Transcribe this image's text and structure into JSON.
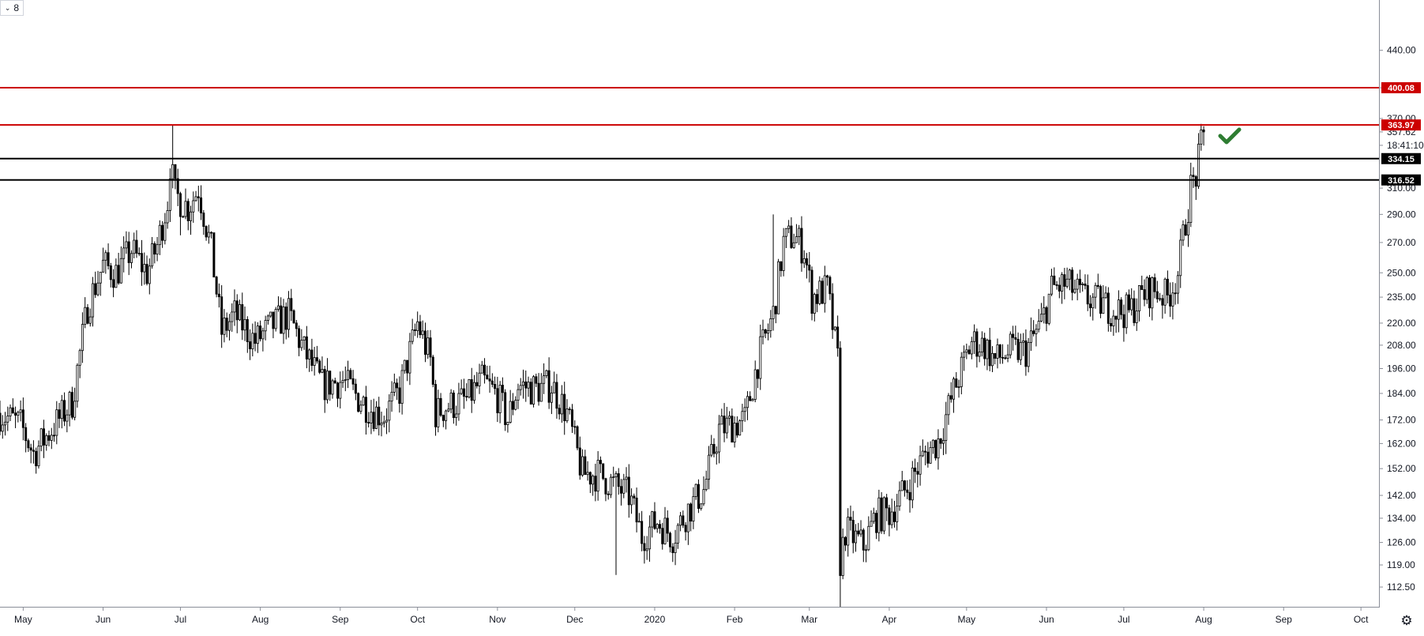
{
  "toolbar": {
    "interval_label": "8",
    "interval_chevron": "chevron-down-icon"
  },
  "price_axis": {
    "ticks": [
      "440.00",
      "400.00",
      "370.00",
      "357.62",
      "18:41:10",
      "334.15",
      "316.52",
      "310.00",
      "290.00",
      "270.00",
      "250.00",
      "235.00",
      "220.00",
      "208.00",
      "196.00",
      "184.00",
      "172.00",
      "162.00",
      "152.00",
      "142.00",
      "134.00",
      "126.00",
      "119.00",
      "112.50"
    ]
  },
  "time_axis": {
    "labels": [
      "May",
      "Jun",
      "Jul",
      "Aug",
      "Sep",
      "Oct",
      "Nov",
      "Dec",
      "2020",
      "Feb",
      "Mar",
      "Apr",
      "May",
      "Jun",
      "Jul",
      "Aug",
      "Sep",
      "Oct"
    ]
  },
  "colors": {
    "resistance": "#cc0000",
    "support": "#000000",
    "candle": "#000000",
    "check": "#2e7d32"
  },
  "chart_data": {
    "type": "candlestick",
    "title": "",
    "scale": "log",
    "y_range": [
      107,
      500
    ],
    "x_range": [
      "2019-04-22",
      "2020-10-08"
    ],
    "horizontal_levels": [
      {
        "value": 400.08,
        "label": "400.08",
        "color": "#cc0000"
      },
      {
        "value": 363.97,
        "label": "363.97",
        "color": "#cc0000"
      },
      {
        "value": 334.15,
        "label": "334.15",
        "color": "#000000"
      },
      {
        "value": 316.52,
        "label": "316.52",
        "color": "#000000"
      }
    ],
    "last_price": 357.62,
    "countdown": "18:41:10",
    "annotation": "check-icon",
    "price_path": [
      [
        "2019-04-22",
        175
      ],
      [
        "2019-04-30",
        170
      ],
      [
        "2019-05-05",
        158
      ],
      [
        "2019-05-12",
        168
      ],
      [
        "2019-05-20",
        180
      ],
      [
        "2019-05-26",
        230
      ],
      [
        "2019-06-01",
        255
      ],
      [
        "2019-06-06",
        250
      ],
      [
        "2019-06-12",
        265
      ],
      [
        "2019-06-18",
        250
      ],
      [
        "2019-06-22",
        268
      ],
      [
        "2019-06-26",
        300
      ],
      [
        "2019-06-27",
        330
      ],
      [
        "2019-06-29",
        305
      ],
      [
        "2019-07-04",
        295
      ],
      [
        "2019-07-08",
        310
      ],
      [
        "2019-07-13",
        265
      ],
      [
        "2019-07-17",
        215
      ],
      [
        "2019-07-22",
        225
      ],
      [
        "2019-07-30",
        210
      ],
      [
        "2019-08-05",
        218
      ],
      [
        "2019-08-12",
        225
      ],
      [
        "2019-08-18",
        205
      ],
      [
        "2019-08-25",
        188
      ],
      [
        "2019-09-02",
        190
      ],
      [
        "2019-09-08",
        182
      ],
      [
        "2019-09-14",
        176
      ],
      [
        "2019-09-18",
        174
      ],
      [
        "2019-09-24",
        185
      ],
      [
        "2019-10-01",
        220
      ],
      [
        "2019-10-06",
        200
      ],
      [
        "2019-10-08",
        175
      ],
      [
        "2019-10-12",
        178
      ],
      [
        "2019-10-20",
        181
      ],
      [
        "2019-10-26",
        190
      ],
      [
        "2019-11-01",
        183
      ],
      [
        "2019-11-05",
        172
      ],
      [
        "2019-11-09",
        188
      ],
      [
        "2019-11-16",
        186
      ],
      [
        "2019-11-22",
        188
      ],
      [
        "2019-11-28",
        175
      ],
      [
        "2019-12-04",
        150
      ],
      [
        "2019-12-10",
        150
      ],
      [
        "2019-12-16",
        146
      ],
      [
        "2019-12-22",
        142
      ],
      [
        "2019-12-27",
        128
      ],
      [
        "2020-01-02",
        133
      ],
      [
        "2020-01-08",
        128
      ],
      [
        "2020-01-14",
        137
      ],
      [
        "2020-01-20",
        144
      ],
      [
        "2020-01-26",
        168
      ],
      [
        "2020-01-31",
        170
      ],
      [
        "2020-02-05",
        172
      ],
      [
        "2020-02-10",
        200
      ],
      [
        "2020-02-16",
        225
      ],
      [
        "2020-02-20",
        270
      ],
      [
        "2020-02-24",
        275
      ],
      [
        "2020-02-28",
        265
      ],
      [
        "2020-03-02",
        235
      ],
      [
        "2020-03-08",
        240
      ],
      [
        "2020-03-12",
        200
      ],
      [
        "2020-03-13",
        120
      ],
      [
        "2020-03-15",
        130
      ],
      [
        "2020-03-22",
        125
      ],
      [
        "2020-03-27",
        135
      ],
      [
        "2020-04-01",
        136
      ],
      [
        "2020-04-08",
        145
      ],
      [
        "2020-04-15",
        158
      ],
      [
        "2020-04-20",
        163
      ],
      [
        "2020-04-26",
        185
      ],
      [
        "2020-05-03",
        210
      ],
      [
        "2020-05-08",
        208
      ],
      [
        "2020-05-12",
        200
      ],
      [
        "2020-05-18",
        205
      ],
      [
        "2020-05-24",
        205
      ],
      [
        "2020-05-30",
        220
      ],
      [
        "2020-06-03",
        240
      ],
      [
        "2020-06-09",
        243
      ],
      [
        "2020-06-15",
        235
      ],
      [
        "2020-06-21",
        232
      ],
      [
        "2020-06-27",
        228
      ],
      [
        "2020-07-03",
        226
      ],
      [
        "2020-07-08",
        236
      ],
      [
        "2020-07-12",
        240
      ],
      [
        "2020-07-18",
        235
      ],
      [
        "2020-07-22",
        250
      ],
      [
        "2020-07-25",
        285
      ],
      [
        "2020-07-27",
        310
      ],
      [
        "2020-07-29",
        320
      ],
      [
        "2020-07-31",
        345
      ],
      [
        "2020-08-01",
        357.62
      ]
    ],
    "wicks": [
      {
        "date": "2019-06-28",
        "high": 364
      },
      {
        "date": "2020-03-13",
        "low": 107
      },
      {
        "date": "2020-02-16",
        "high": 290
      },
      {
        "date": "2019-12-17",
        "low": 116
      },
      {
        "date": "2019-07-01",
        "low": 275
      }
    ]
  }
}
